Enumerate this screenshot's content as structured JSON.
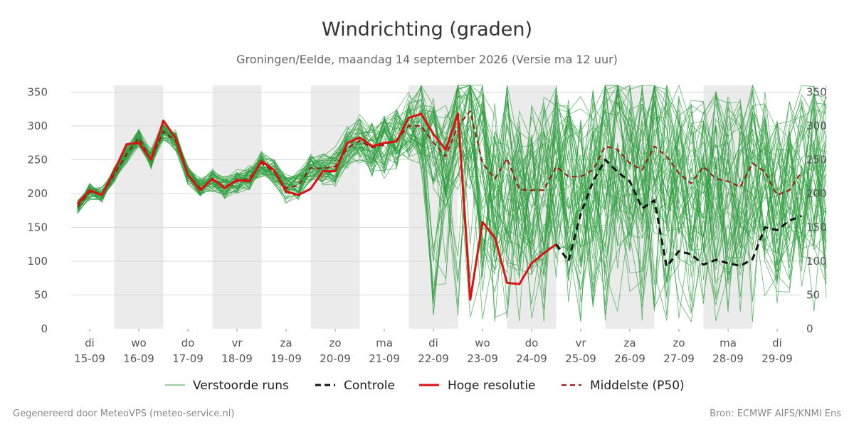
{
  "chart_data": {
    "type": "line",
    "title": "Windrichting (graden)",
    "subtitle": "Groningen/Eelde, maandag 14 september 2026 (Versie ma 12 uur)",
    "ylim": [
      0,
      360
    ],
    "yticks": [
      0,
      50,
      100,
      150,
      200,
      250,
      300,
      350
    ],
    "x_day_range": [
      0.0,
      15.2
    ],
    "x_unit": "days since 15-09 00:00",
    "shaded_days": [
      [
        0.5,
        1.5
      ],
      [
        2.5,
        3.5
      ],
      [
        4.5,
        5.5
      ],
      [
        6.5,
        7.5
      ],
      [
        8.5,
        9.5
      ],
      [
        10.5,
        11.5
      ],
      [
        12.5,
        13.5
      ],
      [
        14.5,
        15.2
      ]
    ],
    "x_ticks": [
      {
        "x": 0.0,
        "day": "di",
        "date": "15-09"
      },
      {
        "x": 1.0,
        "day": "wo",
        "date": "16-09"
      },
      {
        "x": 2.0,
        "day": "do",
        "date": "17-09"
      },
      {
        "x": 3.0,
        "day": "vr",
        "date": "18-09"
      },
      {
        "x": 4.0,
        "day": "za",
        "date": "19-09"
      },
      {
        "x": 5.0,
        "day": "zo",
        "date": "20-09"
      },
      {
        "x": 6.0,
        "day": "ma",
        "date": "21-09"
      },
      {
        "x": 7.0,
        "day": "di",
        "date": "22-09"
      },
      {
        "x": 8.0,
        "day": "wo",
        "date": "23-09"
      },
      {
        "x": 9.0,
        "day": "do",
        "date": "24-09"
      },
      {
        "x": 10.0,
        "day": "vr",
        "date": "25-09"
      },
      {
        "x": 11.0,
        "day": "za",
        "date": "26-09"
      },
      {
        "x": 12.0,
        "day": "zo",
        "date": "27-09"
      },
      {
        "x": 13.0,
        "day": "ma",
        "date": "28-09"
      },
      {
        "x": 14.0,
        "day": "di",
        "date": "29-09"
      }
    ],
    "grid": true,
    "legend_position": "bottom",
    "series": [
      {
        "name": "Hoge resolutie",
        "color": "#dd1111",
        "style": "solid",
        "x": [
          -0.25,
          -0.12,
          0.0,
          0.25,
          0.5,
          0.75,
          1.0,
          1.25,
          1.5,
          1.75,
          2.0,
          2.25,
          2.5,
          2.75,
          3.0,
          3.25,
          3.5,
          3.75,
          4.0,
          4.25,
          4.5,
          4.75,
          5.0,
          5.25,
          5.5,
          5.75,
          6.0,
          6.25,
          6.5,
          6.75,
          7.0,
          7.25,
          7.5,
          7.75,
          8.0,
          8.25,
          8.5,
          8.75,
          9.0,
          9.25,
          9.5
        ],
        "values": [
          185,
          195,
          205,
          198,
          233,
          273,
          275,
          250,
          308,
          282,
          228,
          205,
          222,
          208,
          220,
          218,
          248,
          235,
          203,
          198,
          207,
          233,
          233,
          275,
          283,
          270,
          275,
          277,
          312,
          318,
          288,
          265,
          318,
          43,
          158,
          135,
          68,
          66,
          97,
          112,
          125
        ]
      },
      {
        "name": "Controle",
        "color": "#111111",
        "style": "dash",
        "x": [
          9.5,
          9.75,
          10.0,
          10.25,
          10.5,
          10.75,
          11.0,
          11.25,
          11.5,
          11.75,
          12.0,
          12.25,
          12.5,
          12.75,
          13.0,
          13.25,
          13.5,
          13.75,
          14.0,
          14.25,
          14.5
        ],
        "values": [
          125,
          100,
          170,
          218,
          250,
          232,
          218,
          178,
          190,
          92,
          115,
          110,
          95,
          102,
          97,
          93,
          103,
          150,
          146,
          160,
          167
        ]
      },
      {
        "name": "Middelste (P50)",
        "color": "#9b1414",
        "style": "dash",
        "x": [
          -0.25,
          0.0,
          0.25,
          0.5,
          0.75,
          1.0,
          1.25,
          1.5,
          1.75,
          2.0,
          2.25,
          2.5,
          2.75,
          3.0,
          3.25,
          3.5,
          3.75,
          4.0,
          4.25,
          4.5,
          4.75,
          5.0,
          5.25,
          5.5,
          5.75,
          6.0,
          6.25,
          6.5,
          6.75,
          7.0,
          7.25,
          7.5,
          7.75,
          8.0,
          8.25,
          8.5,
          8.75,
          9.0,
          9.25,
          9.5,
          9.75,
          10.0,
          10.25,
          10.5,
          10.75,
          11.0,
          11.25,
          11.5,
          11.75,
          12.0,
          12.25,
          12.5,
          12.75,
          13.0,
          13.25,
          13.5,
          13.75,
          14.0,
          14.25,
          14.5
        ],
        "values": [
          180,
          203,
          198,
          228,
          258,
          282,
          250,
          292,
          278,
          228,
          208,
          220,
          210,
          218,
          222,
          245,
          232,
          208,
          212,
          238,
          237,
          240,
          268,
          278,
          268,
          272,
          280,
          300,
          300,
          275,
          255,
          300,
          322,
          245,
          222,
          252,
          206,
          205,
          205,
          240,
          225,
          225,
          235,
          270,
          265,
          245,
          235,
          270,
          255,
          230,
          215,
          240,
          222,
          218,
          210,
          245,
          232,
          198,
          205,
          232
        ]
      },
      {
        "name": "Verstoorde runs",
        "color": "#2e9e3e",
        "style": "thin",
        "members": 50
      }
    ]
  },
  "legend": [
    {
      "label": "Verstoorde runs",
      "key": "perturbed"
    },
    {
      "label": "Controle",
      "key": "control"
    },
    {
      "label": "Hoge resolutie",
      "key": "hires"
    },
    {
      "label": "Middelste (P50)",
      "key": "median"
    }
  ],
  "footer": {
    "left": "Gegenereerd door MeteoVPS (meteo-service.nl)",
    "right": "Bron: ECMWF AIFS/KNMI Ens"
  },
  "colors": {
    "shade": "#ebebeb",
    "grid": "#d9d9d9",
    "ensemble": "#2e9e3e",
    "hires": "#dd1111",
    "control": "#111111",
    "median": "#9b1414"
  }
}
